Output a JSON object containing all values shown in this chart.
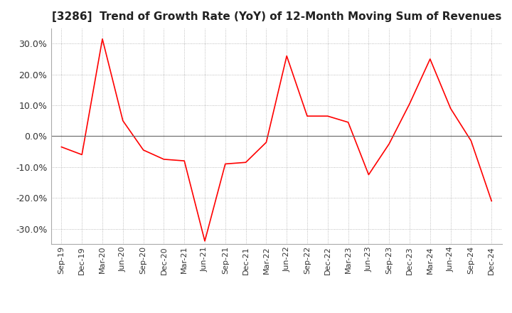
{
  "title": "[3286]  Trend of Growth Rate (YoY) of 12-Month Moving Sum of Revenues",
  "title_fontsize": 11,
  "ylim": [
    -35,
    35
  ],
  "yticks": [
    -30,
    -20,
    -10,
    0,
    10,
    20,
    30
  ],
  "line_color": "#ff0000",
  "background_color": "#ffffff",
  "grid_color": "#aaaaaa",
  "values": [
    -3.5,
    -6.0,
    31.5,
    5.0,
    -4.5,
    -7.5,
    -8.0,
    -34.0,
    -9.0,
    -8.5,
    -2.0,
    26.0,
    6.5,
    6.5,
    4.5,
    -12.5,
    -2.5,
    10.5,
    25.0,
    9.0,
    -1.5,
    -21.0
  ],
  "xtick_labels": [
    "Sep-19",
    "Dec-19",
    "Mar-20",
    "Jun-20",
    "Sep-20",
    "Dec-20",
    "Mar-21",
    "Jun-21",
    "Sep-21",
    "Dec-21",
    "Mar-22",
    "Jun-22",
    "Sep-22",
    "Dec-22",
    "Mar-23",
    "Jun-23",
    "Sep-23",
    "Dec-23",
    "Mar-24",
    "Jun-24",
    "Sep-24",
    "Dec-24"
  ]
}
